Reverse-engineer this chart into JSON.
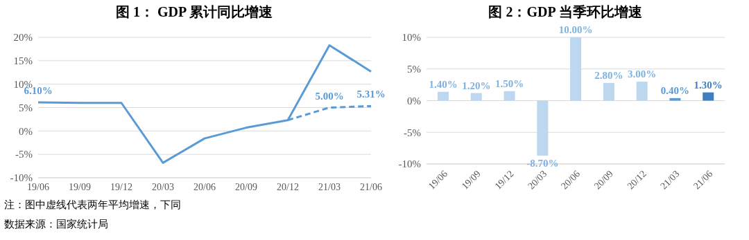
{
  "chart_data": [
    {
      "type": "line",
      "title": "图 1：  GDP 累计同比增速",
      "categories": [
        "19/06",
        "19/09",
        "19/12",
        "20/03",
        "20/06",
        "20/09",
        "20/12",
        "21/03",
        "21/06"
      ],
      "series": [
        {
          "color": "#5b9bd5",
          "values": [
            6.1,
            6.0,
            6.0,
            -6.8,
            -1.6,
            0.7,
            2.3,
            18.3,
            12.7
          ],
          "value_labels": [
            "6.10%",
            null,
            null,
            null,
            null,
            null,
            null,
            null,
            null
          ],
          "line_style": "solid"
        },
        {
          "color": "#5b9bd5",
          "values": [
            null,
            null,
            null,
            null,
            null,
            null,
            2.3,
            5.0,
            5.31
          ],
          "value_labels": [
            null,
            null,
            null,
            null,
            null,
            null,
            null,
            "5.00%",
            "5.31%"
          ],
          "line_style": "dashed"
        }
      ],
      "ylim": [
        -10,
        20
      ],
      "yticks": [
        {
          "value": -10,
          "label": "-10%"
        },
        {
          "value": -5,
          "label": "-5%"
        },
        {
          "value": 0,
          "label": "0%"
        },
        {
          "value": 5,
          "label": "5%"
        },
        {
          "value": 10,
          "label": "10%"
        },
        {
          "value": 15,
          "label": "15%"
        },
        {
          "value": 20,
          "label": "20%"
        }
      ],
      "grid": "y",
      "annotations": [
        "注：图中虚线代表两年平均增速，下同",
        "数据来源：国家统计局"
      ]
    },
    {
      "type": "bar",
      "title": "图 2：GDP 当季环比增速",
      "categories": [
        "19/06",
        "19/09",
        "19/12",
        "20/03",
        "20/06",
        "20/09",
        "20/12",
        "21/03",
        "21/06"
      ],
      "values": [
        1.4,
        1.2,
        1.5,
        -8.7,
        10.0,
        2.8,
        3.0,
        0.4,
        1.3
      ],
      "colors": [
        "#bdd7ee",
        "#bdd7ee",
        "#bdd7ee",
        "#bdd7ee",
        "#bdd7ee",
        "#bdd7ee",
        "#bdd7ee",
        "#5b9bd5",
        "#3f7fc0"
      ],
      "value_labels": [
        "1.40%",
        "1.20%",
        "1.50%",
        "-8.70%",
        "10.00%",
        "2.80%",
        "3.00%",
        "0.40%",
        "1.30%"
      ],
      "ylim": [
        -10,
        10
      ],
      "yticks": [
        {
          "value": -10,
          "label": "-10%"
        },
        {
          "value": -5,
          "label": "-5%"
        },
        {
          "value": 0,
          "label": "0%"
        },
        {
          "value": 5,
          "label": "5%"
        },
        {
          "value": 10,
          "label": "10%"
        }
      ],
      "grid": "y"
    }
  ]
}
